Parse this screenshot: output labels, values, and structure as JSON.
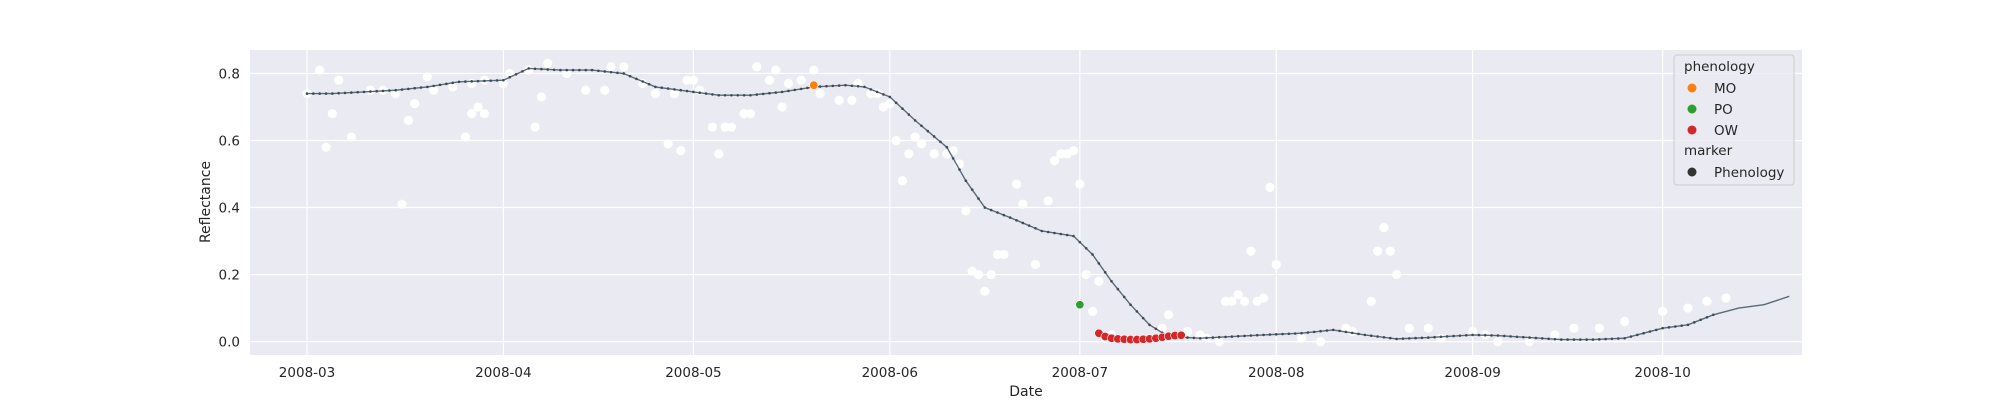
{
  "chart_data": {
    "type": "scatter",
    "xlabel": "Date",
    "ylabel": "Reflectance",
    "xlim": [
      "2008-02-21",
      "2008-10-23"
    ],
    "ylim": [
      -0.04,
      0.87
    ],
    "x_ticks": [
      "2008-03",
      "2008-04",
      "2008-05",
      "2008-06",
      "2008-07",
      "2008-08",
      "2008-09",
      "2008-10"
    ],
    "y_ticks": [
      "0.0",
      "0.2",
      "0.4",
      "0.6",
      "0.8"
    ],
    "grid": true,
    "legend_placement": "top-right",
    "legend": {
      "hue_title": "phenology",
      "hue_items": [
        {
          "name": "MO",
          "color": "#ff7f0e"
        },
        {
          "name": "PO",
          "color": "#2ca02c"
        },
        {
          "name": "OW",
          "color": "#d62728"
        }
      ],
      "marker_title": "marker",
      "marker_items": [
        {
          "name": "Phenology",
          "color": "#333333"
        }
      ]
    },
    "colors": {
      "background": "#eaeaf2",
      "grid": "#ffffff",
      "raw_points": "#ffffff",
      "smooth_line": "#5a6a78",
      "smooth_points": "#3f4a55"
    },
    "raw_observations": [
      [
        "2008-03-01",
        0.74
      ],
      [
        "2008-03-03",
        0.81
      ],
      [
        "2008-03-04",
        0.58
      ],
      [
        "2008-03-05",
        0.68
      ],
      [
        "2008-03-06",
        0.78
      ],
      [
        "2008-03-08",
        0.61
      ],
      [
        "2008-03-11",
        0.75
      ],
      [
        "2008-03-13",
        0.75
      ],
      [
        "2008-03-15",
        0.74
      ],
      [
        "2008-03-16",
        0.41
      ],
      [
        "2008-03-17",
        0.66
      ],
      [
        "2008-03-18",
        0.71
      ],
      [
        "2008-03-20",
        0.79
      ],
      [
        "2008-03-21",
        0.75
      ],
      [
        "2008-03-24",
        0.76
      ],
      [
        "2008-03-27",
        0.77
      ],
      [
        "2008-03-29",
        0.78
      ],
      [
        "2008-04-01",
        0.77
      ],
      [
        "2008-03-26",
        0.61
      ],
      [
        "2008-03-27",
        0.68
      ],
      [
        "2008-03-28",
        0.7
      ],
      [
        "2008-03-29",
        0.68
      ],
      [
        "2008-04-02",
        0.8
      ],
      [
        "2008-04-05",
        0.81
      ],
      [
        "2008-04-06",
        0.64
      ],
      [
        "2008-04-07",
        0.73
      ],
      [
        "2008-04-08",
        0.83
      ],
      [
        "2008-04-11",
        0.8
      ],
      [
        "2008-04-14",
        0.75
      ],
      [
        "2008-04-17",
        0.75
      ],
      [
        "2008-04-18",
        0.82
      ],
      [
        "2008-04-20",
        0.82
      ],
      [
        "2008-04-23",
        0.77
      ],
      [
        "2008-04-25",
        0.74
      ],
      [
        "2008-04-27",
        0.59
      ],
      [
        "2008-04-28",
        0.74
      ],
      [
        "2008-04-29",
        0.57
      ],
      [
        "2008-04-30",
        0.78
      ],
      [
        "2008-05-01",
        0.78
      ],
      [
        "2008-05-02",
        0.75
      ],
      [
        "2008-05-04",
        0.64
      ],
      [
        "2008-05-05",
        0.56
      ],
      [
        "2008-05-06",
        0.64
      ],
      [
        "2008-05-07",
        0.64
      ],
      [
        "2008-05-09",
        0.68
      ],
      [
        "2008-05-10",
        0.68
      ],
      [
        "2008-05-11",
        0.82
      ],
      [
        "2008-05-13",
        0.78
      ],
      [
        "2008-05-14",
        0.81
      ],
      [
        "2008-05-15",
        0.7
      ],
      [
        "2008-05-16",
        0.77
      ],
      [
        "2008-05-18",
        0.78
      ],
      [
        "2008-05-20",
        0.81
      ],
      [
        "2008-05-21",
        0.74
      ],
      [
        "2008-05-24",
        0.72
      ],
      [
        "2008-05-26",
        0.72
      ],
      [
        "2008-05-27",
        0.77
      ],
      [
        "2008-05-29",
        0.74
      ],
      [
        "2008-05-30",
        0.74
      ],
      [
        "2008-05-31",
        0.7
      ],
      [
        "2008-06-01",
        0.71
      ],
      [
        "2008-06-02",
        0.6
      ],
      [
        "2008-06-03",
        0.48
      ],
      [
        "2008-06-04",
        0.56
      ],
      [
        "2008-06-05",
        0.61
      ],
      [
        "2008-06-06",
        0.59
      ],
      [
        "2008-06-08",
        0.56
      ],
      [
        "2008-06-10",
        0.56
      ],
      [
        "2008-06-11",
        0.57
      ],
      [
        "2008-06-12",
        0.53
      ],
      [
        "2008-06-13",
        0.39
      ],
      [
        "2008-06-14",
        0.21
      ],
      [
        "2008-06-15",
        0.2
      ],
      [
        "2008-06-16",
        0.15
      ],
      [
        "2008-06-17",
        0.2
      ],
      [
        "2008-06-18",
        0.26
      ],
      [
        "2008-06-19",
        0.26
      ],
      [
        "2008-06-21",
        0.47
      ],
      [
        "2008-06-22",
        0.41
      ],
      [
        "2008-06-24",
        0.23
      ],
      [
        "2008-06-26",
        0.42
      ],
      [
        "2008-06-27",
        0.54
      ],
      [
        "2008-06-28",
        0.56
      ],
      [
        "2008-06-29",
        0.56
      ],
      [
        "2008-06-30",
        0.57
      ],
      [
        "2008-07-01",
        0.47
      ],
      [
        "2008-07-02",
        0.2
      ],
      [
        "2008-07-03",
        0.09
      ],
      [
        "2008-07-04",
        0.18
      ],
      [
        "2008-07-05",
        0.01
      ],
      [
        "2008-07-06",
        0.02
      ],
      [
        "2008-07-14",
        0.04
      ],
      [
        "2008-07-15",
        0.08
      ],
      [
        "2008-07-18",
        0.03
      ],
      [
        "2008-07-20",
        0.02
      ],
      [
        "2008-07-21",
        0.01
      ],
      [
        "2008-07-23",
        0.0
      ],
      [
        "2008-07-24",
        0.12
      ],
      [
        "2008-07-25",
        0.12
      ],
      [
        "2008-07-26",
        0.14
      ],
      [
        "2008-07-27",
        0.12
      ],
      [
        "2008-07-28",
        0.27
      ],
      [
        "2008-07-29",
        0.12
      ],
      [
        "2008-07-30",
        0.13
      ],
      [
        "2008-07-31",
        0.46
      ],
      [
        "2008-08-01",
        0.23
      ],
      [
        "2008-08-05",
        0.01
      ],
      [
        "2008-08-08",
        0.0
      ],
      [
        "2008-08-12",
        0.04
      ],
      [
        "2008-08-13",
        0.03
      ],
      [
        "2008-08-16",
        0.12
      ],
      [
        "2008-08-17",
        0.27
      ],
      [
        "2008-08-18",
        0.34
      ],
      [
        "2008-08-19",
        0.27
      ],
      [
        "2008-08-20",
        0.2
      ],
      [
        "2008-08-22",
        0.04
      ],
      [
        "2008-08-25",
        0.04
      ],
      [
        "2008-08-27",
        0.01
      ],
      [
        "2008-09-01",
        0.03
      ],
      [
        "2008-09-03",
        0.02
      ],
      [
        "2008-09-05",
        0.0
      ],
      [
        "2008-09-10",
        0.0
      ],
      [
        "2008-09-14",
        0.02
      ],
      [
        "2008-09-17",
        0.04
      ],
      [
        "2008-09-21",
        0.04
      ],
      [
        "2008-09-25",
        0.06
      ],
      [
        "2008-10-01",
        0.09
      ],
      [
        "2008-10-05",
        0.1
      ],
      [
        "2008-10-08",
        0.12
      ],
      [
        "2008-10-11",
        0.13
      ]
    ],
    "smoothed_series": [
      [
        "2008-03-01",
        0.74
      ],
      [
        "2008-03-05",
        0.74
      ],
      [
        "2008-03-10",
        0.745
      ],
      [
        "2008-03-15",
        0.75
      ],
      [
        "2008-03-20",
        0.76
      ],
      [
        "2008-03-25",
        0.775
      ],
      [
        "2008-04-01",
        0.78
      ],
      [
        "2008-04-05",
        0.815
      ],
      [
        "2008-04-10",
        0.81
      ],
      [
        "2008-04-15",
        0.81
      ],
      [
        "2008-04-20",
        0.8
      ],
      [
        "2008-04-25",
        0.76
      ],
      [
        "2008-05-01",
        0.745
      ],
      [
        "2008-05-05",
        0.735
      ],
      [
        "2008-05-10",
        0.735
      ],
      [
        "2008-05-15",
        0.745
      ],
      [
        "2008-05-20",
        0.76
      ],
      [
        "2008-05-25",
        0.765
      ],
      [
        "2008-05-28",
        0.76
      ],
      [
        "2008-06-01",
        0.73
      ],
      [
        "2008-06-05",
        0.66
      ],
      [
        "2008-06-10",
        0.58
      ],
      [
        "2008-06-13",
        0.48
      ],
      [
        "2008-06-16",
        0.4
      ],
      [
        "2008-06-20",
        0.37
      ],
      [
        "2008-06-25",
        0.33
      ],
      [
        "2008-06-30",
        0.315
      ],
      [
        "2008-07-03",
        0.26
      ],
      [
        "2008-07-06",
        0.18
      ],
      [
        "2008-07-09",
        0.11
      ],
      [
        "2008-07-12",
        0.05
      ],
      [
        "2008-07-15",
        0.015
      ],
      [
        "2008-07-20",
        0.01
      ],
      [
        "2008-07-25",
        0.015
      ],
      [
        "2008-07-30",
        0.02
      ],
      [
        "2008-08-05",
        0.025
      ],
      [
        "2008-08-10",
        0.035
      ],
      [
        "2008-08-15",
        0.02
      ],
      [
        "2008-08-20",
        0.008
      ],
      [
        "2008-08-25",
        0.012
      ],
      [
        "2008-09-01",
        0.02
      ],
      [
        "2008-09-05",
        0.018
      ],
      [
        "2008-09-10",
        0.012
      ],
      [
        "2008-09-15",
        0.006
      ],
      [
        "2008-09-20",
        0.006
      ],
      [
        "2008-09-25",
        0.01
      ],
      [
        "2008-10-01",
        0.04
      ],
      [
        "2008-10-05",
        0.05
      ],
      [
        "2008-10-09",
        0.08
      ],
      [
        "2008-10-13",
        0.1
      ],
      [
        "2008-10-17",
        0.11
      ],
      [
        "2008-10-21",
        0.135
      ]
    ],
    "phenology_points": [
      {
        "category": "MO",
        "date": "2008-05-20",
        "value": 0.765
      },
      {
        "category": "PO",
        "date": "2008-07-01",
        "value": 0.11
      },
      {
        "category": "OW",
        "date": "2008-07-04",
        "value": 0.025
      },
      {
        "category": "OW",
        "date": "2008-07-05",
        "value": 0.015
      },
      {
        "category": "OW",
        "date": "2008-07-06",
        "value": 0.01
      },
      {
        "category": "OW",
        "date": "2008-07-07",
        "value": 0.008
      },
      {
        "category": "OW",
        "date": "2008-07-08",
        "value": 0.007
      },
      {
        "category": "OW",
        "date": "2008-07-09",
        "value": 0.006
      },
      {
        "category": "OW",
        "date": "2008-07-10",
        "value": 0.006
      },
      {
        "category": "OW",
        "date": "2008-07-11",
        "value": 0.007
      },
      {
        "category": "OW",
        "date": "2008-07-12",
        "value": 0.008
      },
      {
        "category": "OW",
        "date": "2008-07-13",
        "value": 0.01
      },
      {
        "category": "OW",
        "date": "2008-07-14",
        "value": 0.013
      },
      {
        "category": "OW",
        "date": "2008-07-15",
        "value": 0.016
      },
      {
        "category": "OW",
        "date": "2008-07-16",
        "value": 0.018
      },
      {
        "category": "OW",
        "date": "2008-07-17",
        "value": 0.019
      }
    ]
  }
}
